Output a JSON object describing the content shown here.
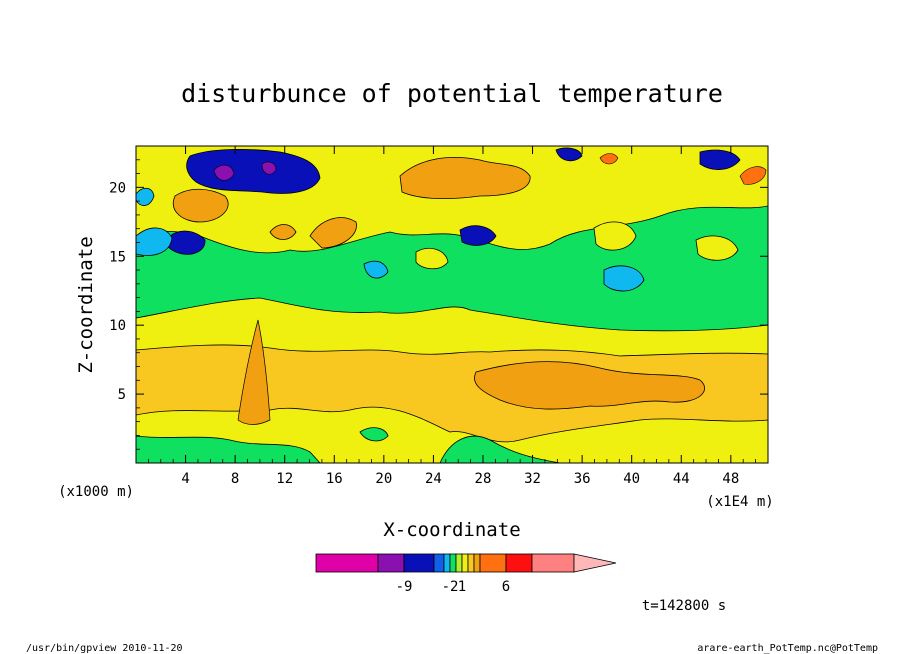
{
  "chart_data": {
    "type": "heatmap",
    "title": "disturbunce of potential temperature",
    "xlabel": "X-coordinate",
    "ylabel": "Z-coordinate",
    "x_unit": "(x1E4 m)",
    "y_unit": "(x1000 m)",
    "xlim": [
      0,
      51
    ],
    "ylim": [
      0,
      23
    ],
    "x_ticks": [
      4,
      8,
      12,
      16,
      20,
      24,
      28,
      32,
      36,
      40,
      44,
      48
    ],
    "y_ticks": [
      5,
      10,
      15,
      20
    ],
    "colorbar": {
      "colors": [
        "#e000a8",
        "#8a10b0",
        "#0a10b8",
        "#1060e8",
        "#10b8f0",
        "#10e060",
        "#b0f030",
        "#f0f010",
        "#f8c820",
        "#f0a010",
        "#ff7010",
        "#ff1010",
        "#ff8080",
        "#ffb8b8"
      ],
      "labels": [
        {
          "value": "-9",
          "position": 2
        },
        {
          "value": "-2",
          "position": 5
        },
        {
          "value": "1",
          "position": 7
        },
        {
          "value": "6",
          "position": 11
        }
      ]
    },
    "time_label": "t=142800 s",
    "footer_left": "/usr/bin/gpview   2010-11-20",
    "footer_right": "arare-earth_PotTemp.nc@PotTemp"
  }
}
